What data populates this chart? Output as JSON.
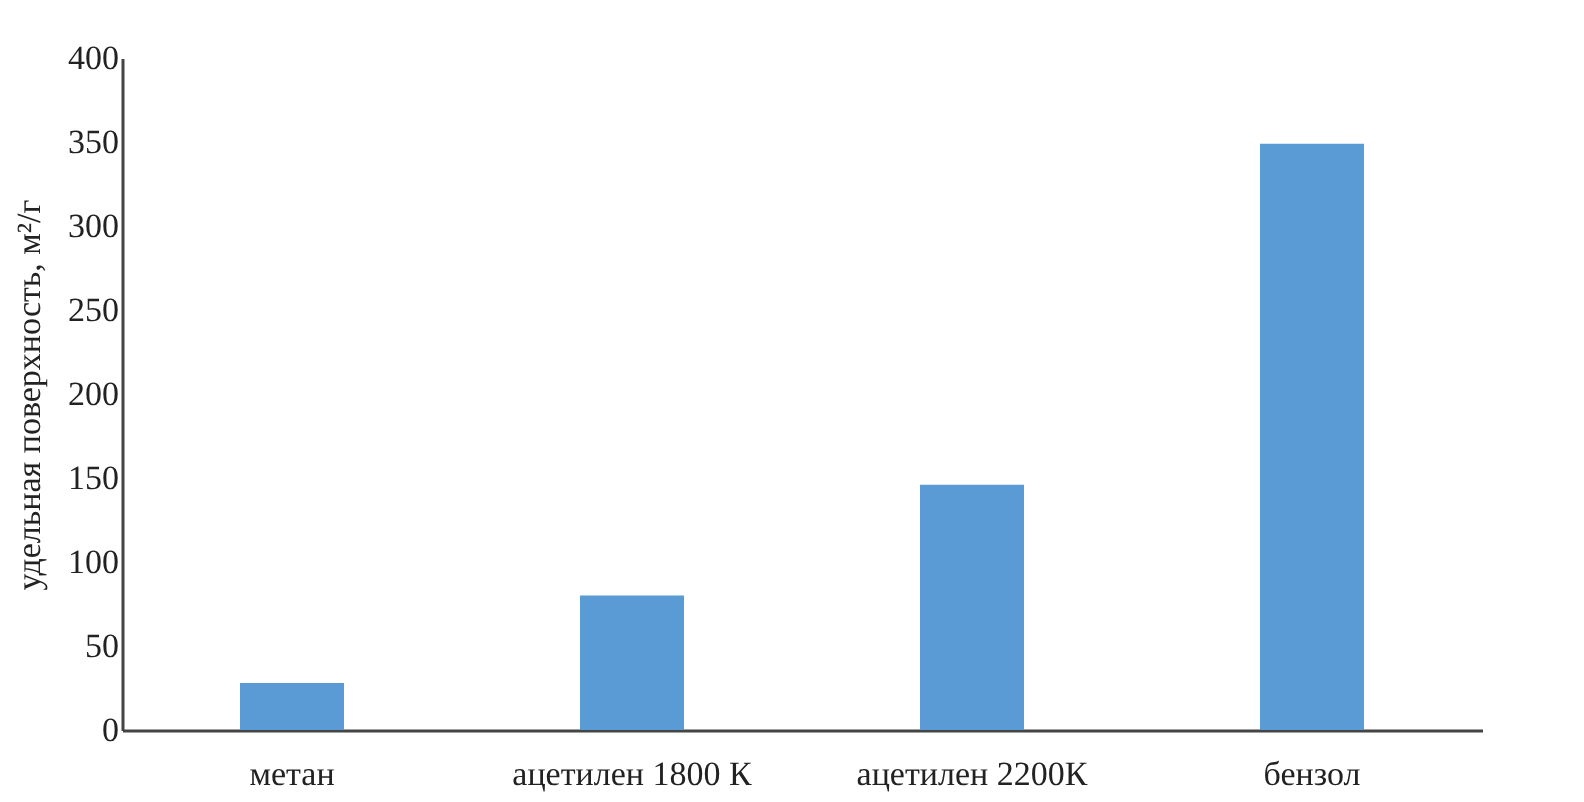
{
  "chart_data": {
    "type": "bar",
    "ylabel": "удельная поверхность, м²/г",
    "categories": [
      "метан",
      "ацетилен 1800 К",
      "ацетилен 2200К",
      "бензол"
    ],
    "values": [
      28,
      80,
      146,
      349
    ],
    "color": "#5b9bd5",
    "ylim": [
      0,
      400
    ],
    "yticks": [
      0,
      50,
      100,
      150,
      200,
      250,
      300,
      350,
      400
    ],
    "grid": false
  }
}
